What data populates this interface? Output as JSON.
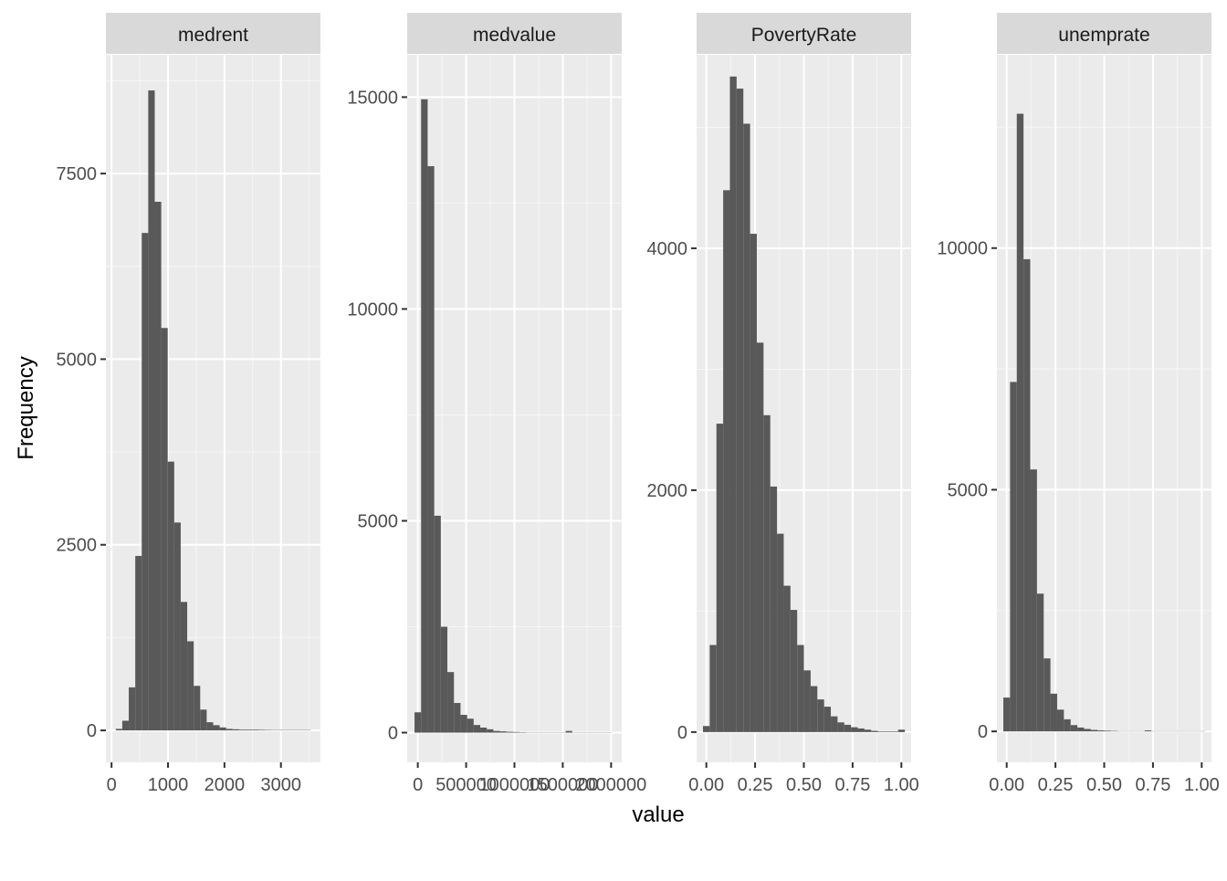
{
  "chart_data": {
    "type": "bar",
    "subtype": "histogram-facets",
    "xlabel": "value",
    "ylabel": "Frequency",
    "colors": {
      "bar": "#595959",
      "panel": "#ebebeb",
      "strip": "#d9d9d9",
      "grid_major": "#ffffff",
      "axis_text": "#4d4d4d",
      "title_text": "#1a1a1a"
    },
    "grid": true,
    "legend": "none",
    "facets": [
      {
        "strip": "medrent",
        "xlim": [
          -100,
          3700
        ],
        "ylim": [
          -430,
          9100
        ],
        "x_ticks": [
          {
            "v": 0,
            "label": "0"
          },
          {
            "v": 1000,
            "label": "1000"
          },
          {
            "v": 2000,
            "label": "2000"
          },
          {
            "v": 3000,
            "label": "3000"
          }
        ],
        "y_ticks": [
          {
            "v": 0,
            "label": "0"
          },
          {
            "v": 2500,
            "label": "2500"
          },
          {
            "v": 5000,
            "label": "5000"
          },
          {
            "v": 7500,
            "label": "7500"
          }
        ],
        "bin_start": 75,
        "bin_width": 115,
        "counts": [
          20,
          130,
          580,
          2350,
          6700,
          8620,
          7120,
          5420,
          3620,
          2800,
          1730,
          1200,
          600,
          280,
          110,
          70,
          40,
          20,
          15,
          10,
          10,
          10,
          8,
          6,
          5,
          5,
          5,
          5,
          5,
          5
        ]
      },
      {
        "strip": "medvalue",
        "xlim": [
          -110000,
          2110000
        ],
        "ylim": [
          -700,
          16000
        ],
        "x_ticks": [
          {
            "v": 0,
            "label": "0"
          },
          {
            "v": 500000,
            "label": "500000"
          },
          {
            "v": 1000000,
            "label": "1000000"
          },
          {
            "v": 1500000,
            "label": "1500000"
          },
          {
            "v": 2000000,
            "label": "2000000"
          }
        ],
        "y_ticks": [
          {
            "v": 0,
            "label": "0"
          },
          {
            "v": 5000,
            "label": "5000"
          },
          {
            "v": 10000,
            "label": "10000"
          },
          {
            "v": 15000,
            "label": "15000"
          }
        ],
        "bin_start": -34000,
        "bin_width": 68000,
        "counts": [
          480,
          14950,
          13370,
          5120,
          2500,
          1430,
          700,
          420,
          330,
          180,
          120,
          80,
          40,
          30,
          20,
          15,
          10,
          5,
          5,
          5,
          5,
          5,
          5,
          40,
          5,
          5,
          5,
          5,
          5,
          5
        ]
      },
      {
        "strip": "PovertyRate",
        "xlim": [
          -0.05,
          1.05
        ],
        "ylim": [
          -250,
          5600
        ],
        "x_ticks": [
          {
            "v": 0,
            "label": "0.00"
          },
          {
            "v": 0.25,
            "label": "0.25"
          },
          {
            "v": 0.5,
            "label": "0.50"
          },
          {
            "v": 0.75,
            "label": "0.75"
          },
          {
            "v": 1,
            "label": "1.00"
          }
        ],
        "y_ticks": [
          {
            "v": 0,
            "label": "0"
          },
          {
            "v": 2000,
            "label": "2000"
          },
          {
            "v": 4000,
            "label": "4000"
          }
        ],
        "bin_start": -0.0172,
        "bin_width": 0.0345,
        "counts": [
          50,
          720,
          2550,
          4480,
          5420,
          5320,
          5030,
          4120,
          3220,
          2620,
          2030,
          1640,
          1210,
          1010,
          720,
          510,
          380,
          270,
          210,
          130,
          80,
          60,
          40,
          30,
          20,
          10,
          5,
          5,
          5,
          20
        ]
      },
      {
        "strip": "unemprate",
        "xlim": [
          -0.05,
          1.05
        ],
        "ylim": [
          -640,
          14000
        ],
        "x_ticks": [
          {
            "v": 0,
            "label": "0.00"
          },
          {
            "v": 0.25,
            "label": "0.25"
          },
          {
            "v": 0.5,
            "label": "0.50"
          },
          {
            "v": 0.75,
            "label": "0.75"
          },
          {
            "v": 1,
            "label": "1.00"
          }
        ],
        "y_ticks": [
          {
            "v": 0,
            "label": "0"
          },
          {
            "v": 5000,
            "label": "5000"
          },
          {
            "v": 10000,
            "label": "10000"
          }
        ],
        "bin_start": -0.0172,
        "bin_width": 0.0345,
        "counts": [
          700,
          7230,
          12780,
          9770,
          5420,
          2850,
          1510,
          780,
          450,
          250,
          130,
          80,
          50,
          30,
          20,
          15,
          10,
          5,
          5,
          5,
          5,
          20,
          5,
          5,
          5,
          5,
          5,
          5,
          5,
          5
        ]
      }
    ]
  }
}
